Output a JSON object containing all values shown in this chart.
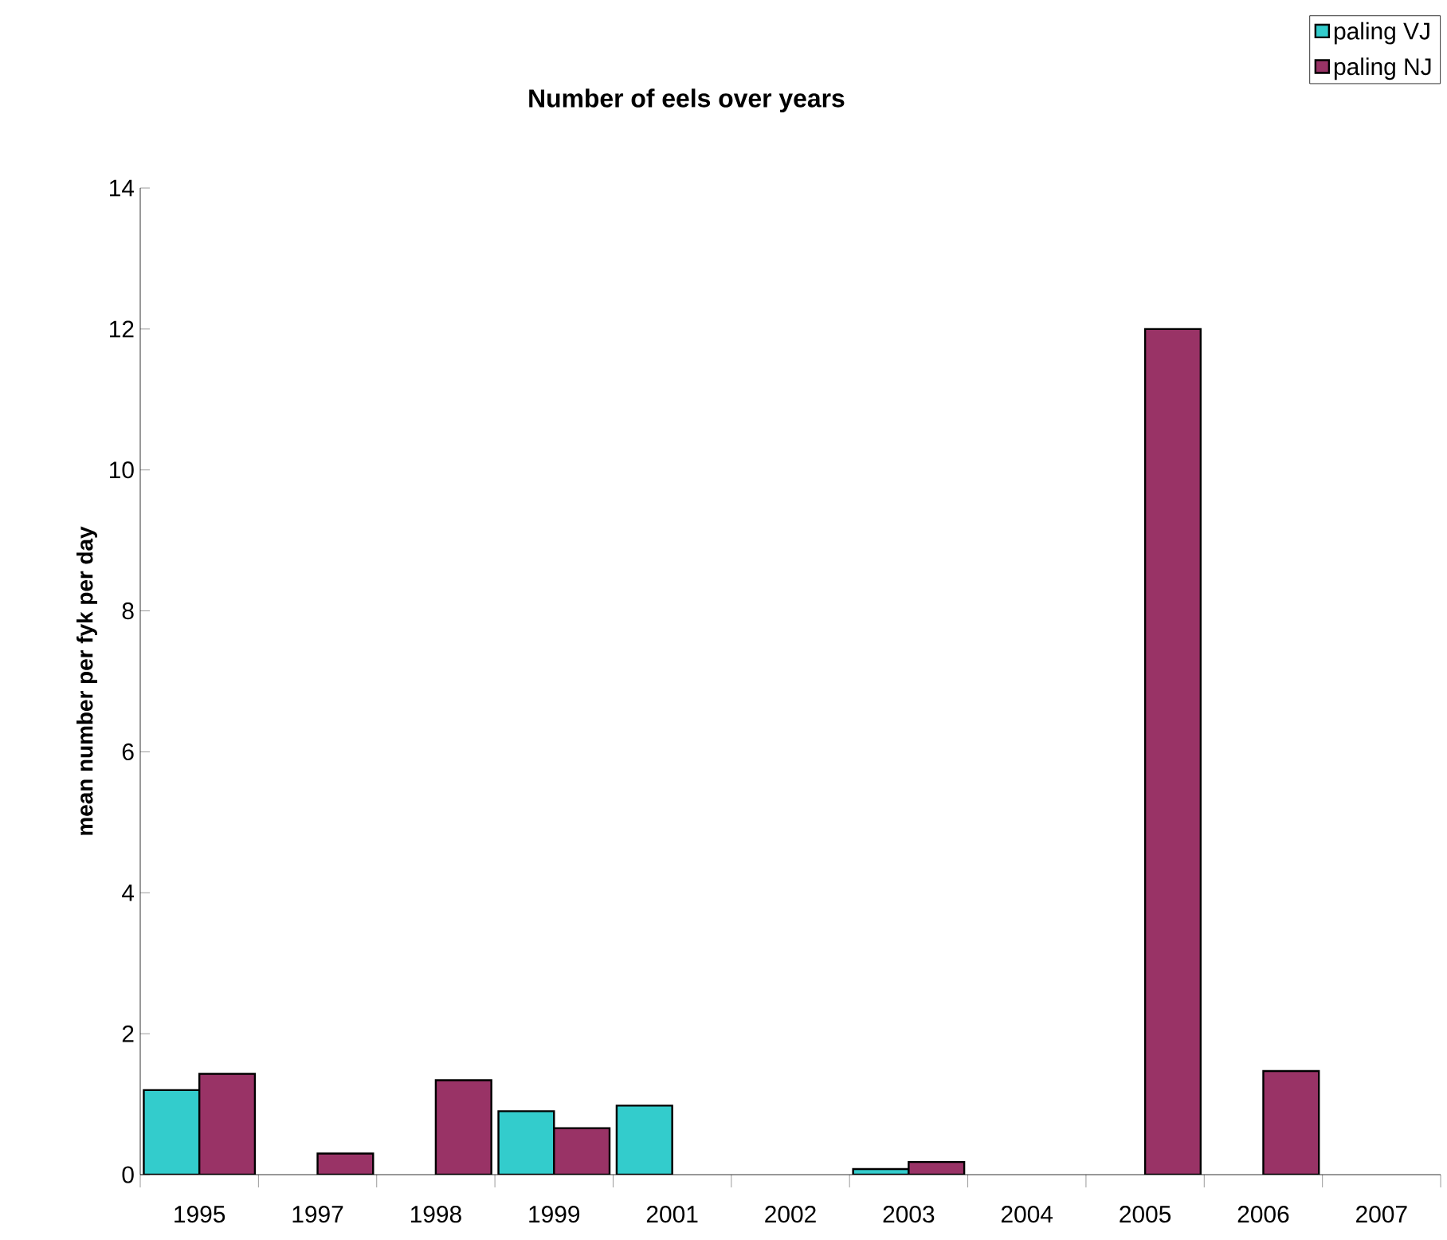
{
  "chart_data": {
    "type": "bar",
    "title": "Number of eels over years",
    "ylabel": "mean number per fyk per day",
    "categories": [
      "1995",
      "1997",
      "1998",
      "1999",
      "2001",
      "2002",
      "2003",
      "2004",
      "2005",
      "2006",
      "2007"
    ],
    "series": [
      {
        "name": "paling VJ",
        "color": "#33cccc",
        "values": [
          1.2,
          null,
          null,
          0.9,
          0.98,
          null,
          0.08,
          null,
          null,
          null,
          null
        ]
      },
      {
        "name": "paling NJ",
        "color": "#993366",
        "values": [
          1.43,
          0.3,
          1.34,
          0.66,
          null,
          null,
          0.18,
          null,
          12.0,
          1.47,
          null
        ]
      }
    ],
    "ylim": [
      0,
      14
    ],
    "yticks": [
      0,
      2,
      4,
      6,
      8,
      10,
      12,
      14
    ],
    "grid": false,
    "legend": "top right"
  }
}
